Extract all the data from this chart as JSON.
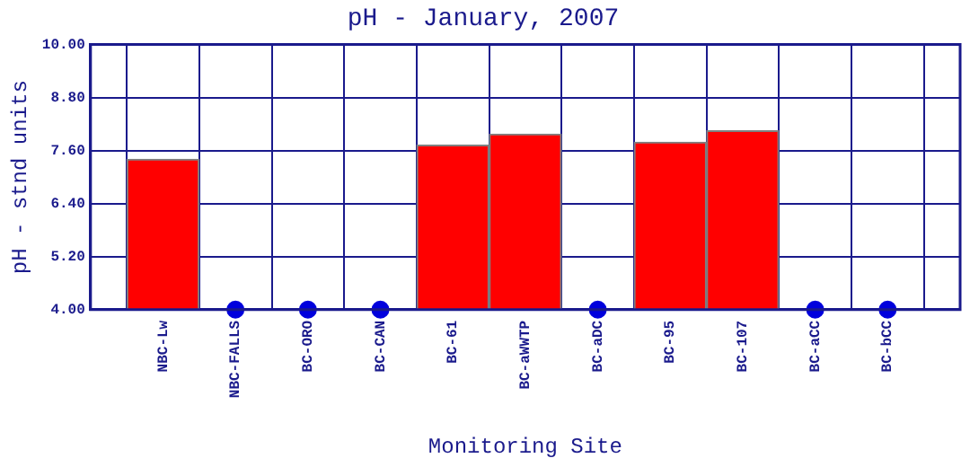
{
  "chart_data": {
    "type": "bar",
    "title": "pH - January, 2007",
    "xlabel": "Monitoring Site",
    "ylabel": "pH - stnd units",
    "categories": [
      "NBC-Lw",
      "NBC-FALLS",
      "BC-ORO",
      "BC-CAN",
      "BC-61",
      "BC-aWWTP",
      "BC-aDC",
      "BC-95",
      "BC-107",
      "BC-aCC",
      "BC-bCC"
    ],
    "series": [
      {
        "color": "#ff0000",
        "values": [
          7.4,
          null,
          null,
          null,
          7.72,
          7.97,
          null,
          7.79,
          8.05,
          null,
          null
        ]
      },
      {
        "type": "scatter",
        "color": "#0000dd",
        "x": [
          "NBC-FALLS",
          "BC-ORO",
          "BC-CAN",
          "BC-aDC",
          "BC-aCC",
          "BC-bCC"
        ],
        "values": [
          4,
          4,
          4,
          4,
          4,
          4
        ]
      }
    ],
    "ylim": [
      4,
      10
    ],
    "yticks": [
      {
        "value": 4,
        "label": "4.00"
      },
      {
        "value": 5.2,
        "label": "5.20"
      },
      {
        "value": 6.4,
        "label": "6.40"
      },
      {
        "value": 7.6,
        "label": "7.60"
      },
      {
        "value": 8.8,
        "label": "8.80"
      },
      {
        "value": 10,
        "label": "10.00"
      }
    ],
    "grid": true,
    "legend": false,
    "marker": "circle"
  }
}
